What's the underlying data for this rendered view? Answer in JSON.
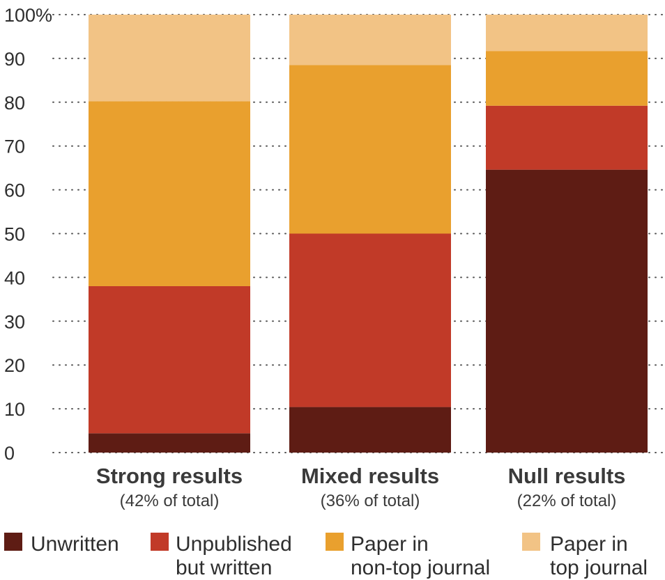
{
  "chart_data": {
    "type": "bar",
    "stacked": true,
    "ylim": [
      0,
      100
    ],
    "yticks": [
      0,
      10,
      20,
      30,
      40,
      50,
      60,
      70,
      80,
      90,
      100
    ],
    "ytick_labels": [
      "0",
      "10",
      "20",
      "30",
      "40",
      "50",
      "60",
      "70",
      "80",
      "90",
      "100%"
    ],
    "grid": "dotted horizontal",
    "categories": [
      "Strong results",
      "Mixed results",
      "Null results"
    ],
    "category_sublabels": [
      "(42% of total)",
      "(36% of total)",
      "(22% of total)"
    ],
    "series": [
      {
        "name": "Unwritten",
        "color": "#5e1c14",
        "values": [
          4.4,
          10.4,
          64.6
        ]
      },
      {
        "name": "Unpublished but written",
        "color": "#c13a28",
        "values": [
          33.6,
          39.6,
          14.6
        ]
      },
      {
        "name": "Paper in non-top journal",
        "color": "#e9a02e",
        "values": [
          42.2,
          38.5,
          12.5
        ]
      },
      {
        "name": "Paper in top journal",
        "color": "#f2c385",
        "values": [
          19.8,
          11.5,
          8.3
        ]
      }
    ],
    "legend": {
      "placement": "bottom",
      "entries": [
        {
          "series": 0,
          "lines": [
            "Unwritten"
          ]
        },
        {
          "series": 1,
          "lines": [
            "Unpublished",
            "but written"
          ]
        },
        {
          "series": 2,
          "lines": [
            "Paper in",
            "non-top journal"
          ]
        },
        {
          "series": 3,
          "lines": [
            "Paper in",
            "top journal"
          ]
        }
      ]
    }
  }
}
